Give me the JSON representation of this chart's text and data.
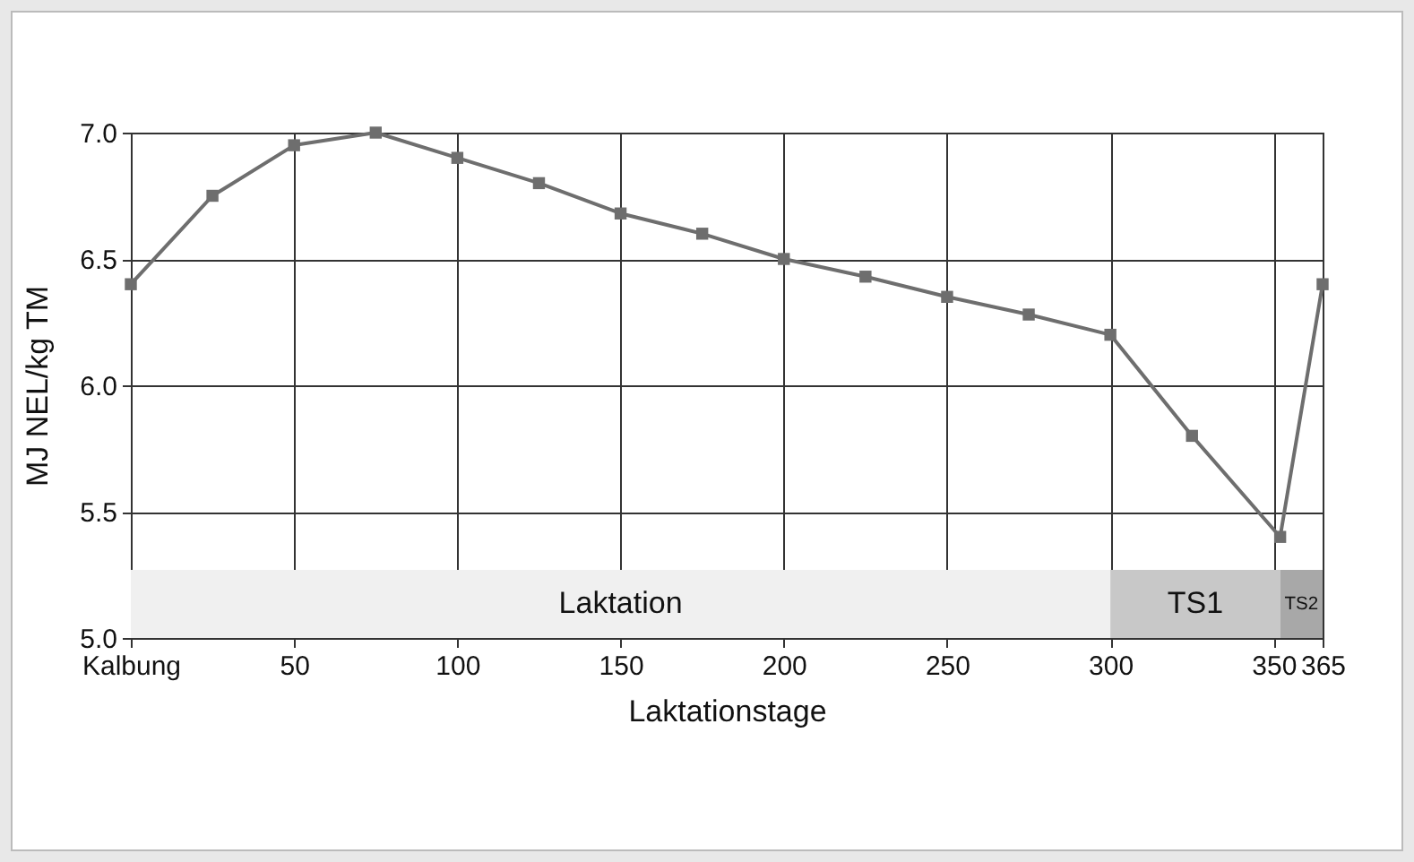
{
  "chart_data": {
    "type": "line",
    "xlabel": "Laktationstage",
    "ylabel": "MJ NEL/kg TM",
    "x": [
      0,
      25,
      50,
      75,
      100,
      125,
      150,
      175,
      200,
      225,
      250,
      275,
      300,
      325,
      352,
      365
    ],
    "series": [
      {
        "color": "#6e6e6e",
        "values": [
          6.4,
          6.75,
          6.95,
          7.0,
          6.9,
          6.8,
          6.68,
          6.6,
          6.5,
          6.43,
          6.35,
          6.28,
          6.2,
          5.8,
          5.4,
          6.4
        ]
      }
    ],
    "xlim": [
      0,
      365
    ],
    "xticks": [
      {
        "value": 0,
        "label": "Kalbung"
      },
      50,
      100,
      150,
      200,
      250,
      300,
      350,
      365
    ],
    "ylim": [
      5.0,
      7.0
    ],
    "yticks": [
      {
        "value": 5.0,
        "label": "5.0"
      },
      5.5,
      {
        "value": 6.0,
        "label": "6.0"
      },
      6.5,
      {
        "value": 7.0,
        "label": "7.0"
      }
    ],
    "bands": [
      {
        "axis": "x",
        "from": 0,
        "to": 300,
        "label": "Laktation",
        "color": "#f0f0f0"
      },
      {
        "axis": "x",
        "from": 300,
        "to": 352,
        "label": "TS1",
        "color": "#c8c8c8"
      },
      {
        "axis": "x",
        "from": 352,
        "to": 365,
        "label": "TS2",
        "color": "#a8a8a8"
      }
    ],
    "grid": true,
    "marker": "square",
    "line_style": "solid"
  }
}
